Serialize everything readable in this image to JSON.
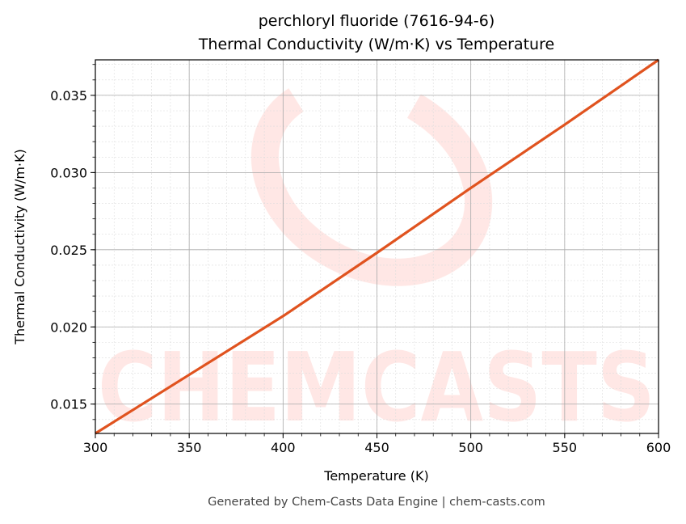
{
  "chart_data": {
    "type": "line",
    "title": "perchloryl fluoride (7616-94-6)",
    "subtitle": "Thermal Conductivity (W/m·K) vs Temperature",
    "xlabel": "Temperature (K)",
    "ylabel": "Thermal Conductivity (W/m·K)",
    "xlim": [
      300,
      600
    ],
    "ylim": [
      0.0131,
      0.0373
    ],
    "xticks": [
      300,
      350,
      400,
      450,
      500,
      550,
      600
    ],
    "xtick_labels": [
      "300",
      "350",
      "400",
      "450",
      "500",
      "550",
      "600"
    ],
    "yticks": [
      0.015,
      0.02,
      0.025,
      0.03,
      0.035
    ],
    "ytick_labels": [
      "0.015",
      "0.020",
      "0.025",
      "0.030",
      "0.035"
    ],
    "grid": true,
    "series": [
      {
        "color": "#e0531f",
        "x": [
          300,
          350,
          400,
          450,
          500,
          550,
          600
        ],
        "y": [
          0.0131,
          0.0169,
          0.0207,
          0.0248,
          0.029,
          0.0331,
          0.0373
        ]
      }
    ],
    "watermark": "CHEMCASTS"
  },
  "footer": "Generated by Chem-Casts Data Engine | chem-casts.com"
}
